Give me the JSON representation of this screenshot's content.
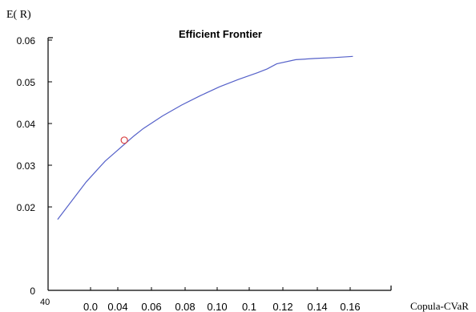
{
  "chart_data": {
    "type": "line",
    "title": "Efficient Frontier",
    "ylabel": "E( R)",
    "xlabel": "Copula-CVaR",
    "ylim": [
      0,
      0.06
    ],
    "y_ticks": [
      "0.06",
      "0.05",
      "0.04",
      "0.03",
      "0.02",
      "0"
    ],
    "x_ticks": [
      "0.0",
      "0.04",
      "0.06",
      "0.08",
      "0.10",
      "0.1",
      "0.12",
      "0.14",
      "0.16"
    ],
    "x_origin_label": "40",
    "grid": false,
    "series": [
      {
        "x": [
          0.005,
          0.01,
          0.015,
          0.02,
          0.025,
          0.03,
          0.035,
          0.04,
          0.045,
          0.05,
          0.06,
          0.07,
          0.08,
          0.09,
          0.1,
          0.11,
          0.115,
          0.12,
          0.13,
          0.14,
          0.15,
          0.16
        ],
        "values": [
          0.017,
          0.02,
          0.023,
          0.026,
          0.0285,
          0.031,
          0.033,
          0.035,
          0.037,
          0.0388,
          0.0418,
          0.0444,
          0.0467,
          0.0488,
          0.0506,
          0.0522,
          0.0531,
          0.0543,
          0.0553,
          0.0556,
          0.0558,
          0.0561
        ],
        "color": "#5561c9"
      }
    ],
    "highlight_point": {
      "x": 0.04,
      "y": 0.036,
      "color": "#d94040"
    }
  }
}
